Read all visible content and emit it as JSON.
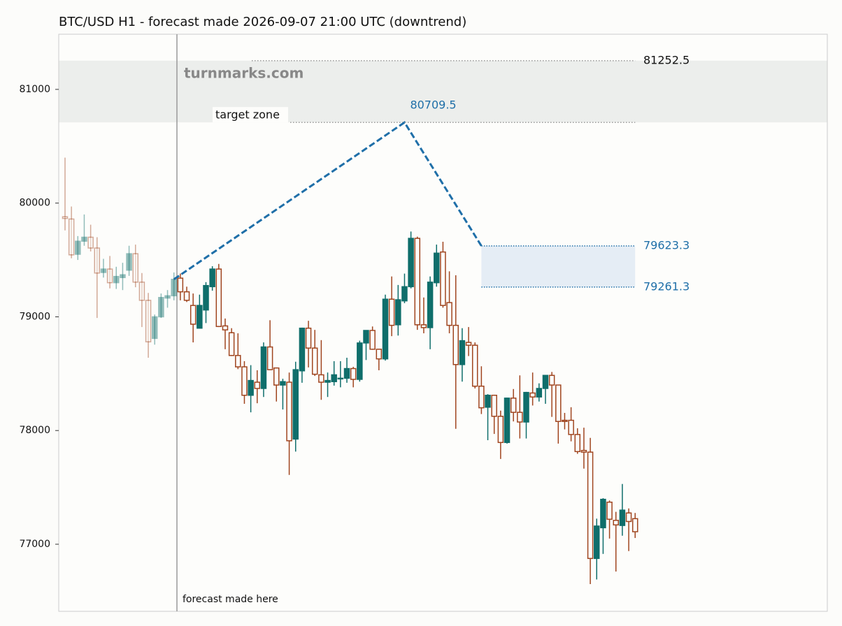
{
  "chart_data": {
    "type": "candlestick",
    "title": "BTC/USD H1 - forecast made 2026-09-07 21:00 UTC (downtrend)",
    "watermark": "turnmarks.com",
    "open": [
      79880,
      79860,
      79550,
      79665,
      79700,
      79605,
      79390,
      79420,
      79300,
      79345,
      79410,
      79555,
      79305,
      79145,
      78810,
      79000,
      79165,
      79185,
      79340,
      79220,
      79100,
      78900,
      79060,
      79265,
      79420,
      78920,
      78860,
      78660,
      78560,
      78310,
      78425,
      78370,
      78735,
      78550,
      78400,
      78425,
      77925,
      78525,
      78900,
      78725,
      78490,
      78425,
      78430,
      78455,
      78460,
      78545,
      78450,
      78770,
      78880,
      78715,
      78630,
      79155,
      78930,
      79140,
      79265,
      79690,
      78930,
      78905,
      79300,
      79570,
      79125,
      78925,
      78580,
      78775,
      78750,
      78390,
      78205,
      78310,
      78125,
      77895,
      78285,
      78160,
      78075,
      78330,
      78295,
      78370,
      78485,
      78400,
      78090,
      78090,
      77965,
      77825,
      77810,
      76875,
      77145,
      77370,
      77210,
      77165,
      77275,
      77225
    ],
    "high": [
      80400,
      79970,
      79710,
      79900,
      79810,
      79700,
      79510,
      79535,
      79440,
      79475,
      79625,
      79635,
      79385,
      79210,
      79020,
      79205,
      79235,
      79390,
      79380,
      79265,
      79205,
      79195,
      79305,
      79445,
      79465,
      78985,
      78900,
      78855,
      78610,
      78575,
      78530,
      78775,
      78970,
      78555,
      78455,
      78510,
      78605,
      78905,
      78965,
      78885,
      78795,
      78510,
      78610,
      78610,
      78640,
      78560,
      78790,
      78880,
      78915,
      78720,
      79195,
      79355,
      79280,
      79380,
      79750,
      79705,
      79170,
      79355,
      79635,
      79660,
      79400,
      79365,
      78900,
      78910,
      78775,
      78565,
      78320,
      78315,
      78175,
      78290,
      78365,
      78485,
      78340,
      78510,
      78415,
      78485,
      78515,
      78400,
      78155,
      78205,
      78020,
      78025,
      77935,
      77225,
      77405,
      77385,
      77285,
      77530,
      77315,
      77275
    ],
    "low": [
      79760,
      79515,
      79500,
      79625,
      79575,
      78990,
      79345,
      79250,
      79245,
      79235,
      79360,
      79260,
      78910,
      78640,
      78755,
      78990,
      79080,
      79145,
      79145,
      79130,
      78775,
      78900,
      78945,
      79230,
      78910,
      78715,
      78655,
      78540,
      78235,
      78160,
      78240,
      78295,
      78530,
      78255,
      78185,
      77610,
      77815,
      78420,
      78555,
      78480,
      78270,
      78295,
      78395,
      78380,
      78420,
      78380,
      78430,
      78620,
      78710,
      78530,
      78615,
      78830,
      78835,
      79120,
      79250,
      78885,
      78855,
      78715,
      79265,
      79080,
      78855,
      78015,
      78430,
      78655,
      78370,
      78145,
      77915,
      77970,
      77750,
      77885,
      78080,
      77930,
      77930,
      78220,
      78255,
      78235,
      78120,
      77885,
      78010,
      77905,
      77795,
      77665,
      76650,
      76690,
      76915,
      77050,
      76760,
      77075,
      76940,
      77055
    ],
    "close": [
      79865,
      79545,
      79665,
      79700,
      79605,
      79385,
      79420,
      79300,
      79355,
      79370,
      79555,
      79305,
      79145,
      78780,
      79000,
      79170,
      79185,
      79330,
      79220,
      79145,
      78935,
      79100,
      79275,
      79420,
      78915,
      78885,
      78660,
      78560,
      78310,
      78440,
      78370,
      78735,
      78535,
      78400,
      78430,
      77910,
      78535,
      78900,
      78725,
      78495,
      78425,
      78440,
      78490,
      78460,
      78545,
      78450,
      78770,
      78880,
      78715,
      78630,
      79155,
      78925,
      79150,
      79265,
      79690,
      78930,
      78905,
      79305,
      79560,
      79100,
      78925,
      78580,
      78790,
      78750,
      78390,
      78200,
      78310,
      78125,
      77895,
      78285,
      78160,
      78075,
      78335,
      78295,
      78370,
      78485,
      78400,
      78080,
      78080,
      77965,
      77815,
      77810,
      76875,
      77160,
      77395,
      77220,
      77170,
      77300,
      77200,
      77110
    ],
    "up_color": "#0f6e6b",
    "down_color": "#a0451f",
    "xlim": [
      -0.98,
      119
    ],
    "ylim": [
      76410,
      81485
    ],
    "yticks": [
      77000,
      78000,
      79000,
      80000,
      81000
    ],
    "forecast_marker": {
      "x": 17.47,
      "label": "forecast made here"
    },
    "forecast": {
      "x": [
        17,
        53,
        65
      ],
      "values": [
        79330,
        80709.5,
        79623.3
      ],
      "color": "#1f6fa8"
    },
    "target_zone": {
      "label": "target zone",
      "low": 80709.5,
      "high": 81252.5
    },
    "forecast_zone": {
      "x": [
        65,
        89
      ],
      "low": 79261.3,
      "high": 79623.3
    }
  }
}
